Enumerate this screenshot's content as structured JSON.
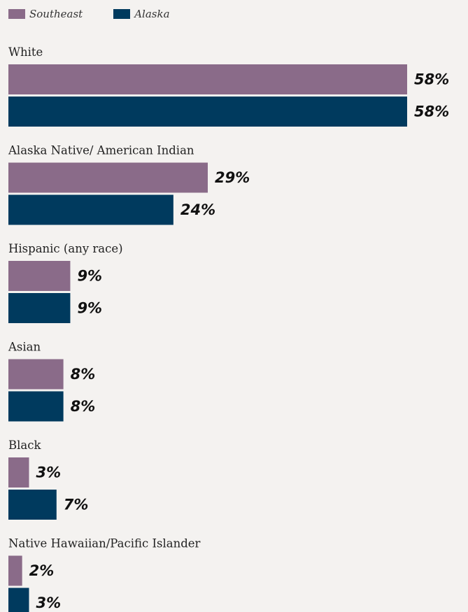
{
  "chart_data": {
    "type": "bar",
    "orientation": "horizontal",
    "categories": [
      "White",
      "Alaska Native/ American Indian",
      "Hispanic (any race)",
      "Asian",
      "Black",
      "Native Hawaiian/Pacific Islander"
    ],
    "series": [
      {
        "name": "Southeast",
        "color": "#8a6b89",
        "values": [
          58,
          29,
          9,
          8,
          3,
          2
        ],
        "labels": [
          "58%",
          "29%",
          "9%",
          "8%",
          "3%",
          "2%"
        ]
      },
      {
        "name": "Alaska",
        "color": "#003a5e",
        "values": [
          58,
          24,
          9,
          8,
          7,
          3
        ],
        "labels": [
          "58%",
          "24%",
          "9%",
          "8%",
          "7%",
          "3%"
        ]
      }
    ],
    "xlim": [
      0,
      58
    ],
    "legend_position": "top-left",
    "grid": false
  }
}
